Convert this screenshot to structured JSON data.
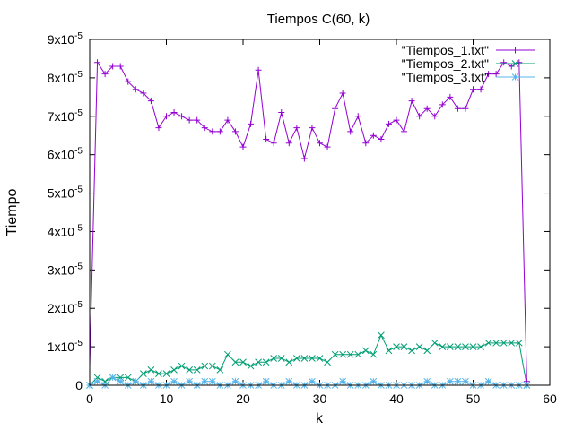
{
  "chart_data": {
    "type": "line",
    "title": "Tiempos C(60, k)",
    "xlabel": "k",
    "ylabel": "Tiempo",
    "xlim": [
      0,
      60
    ],
    "ylim": [
      0,
      9e-05
    ],
    "grid": false,
    "legend_position": "top-right",
    "x_ticks": [
      {
        "value": 0,
        "label": "0"
      },
      {
        "value": 10,
        "label": "10"
      },
      {
        "value": 20,
        "label": "20"
      },
      {
        "value": 30,
        "label": "30"
      },
      {
        "value": 40,
        "label": "40"
      },
      {
        "value": 50,
        "label": "50"
      },
      {
        "value": 60,
        "label": "60"
      }
    ],
    "y_ticks": [
      {
        "value": 0,
        "mantissa": "0",
        "exponent": ""
      },
      {
        "value": 1e-05,
        "mantissa": "1x10",
        "exponent": "-5"
      },
      {
        "value": 2e-05,
        "mantissa": "2x10",
        "exponent": "-5"
      },
      {
        "value": 3e-05,
        "mantissa": "3x10",
        "exponent": "-5"
      },
      {
        "value": 4e-05,
        "mantissa": "4x10",
        "exponent": "-5"
      },
      {
        "value": 5e-05,
        "mantissa": "5x10",
        "exponent": "-5"
      },
      {
        "value": 6e-05,
        "mantissa": "6x10",
        "exponent": "-5"
      },
      {
        "value": 7e-05,
        "mantissa": "7x10",
        "exponent": "-5"
      },
      {
        "value": 8e-05,
        "mantissa": "8x10",
        "exponent": "-5"
      },
      {
        "value": 9e-05,
        "mantissa": "9x10",
        "exponent": "-5"
      }
    ],
    "x": [
      0,
      1,
      2,
      3,
      4,
      5,
      6,
      7,
      8,
      9,
      10,
      11,
      12,
      13,
      14,
      15,
      16,
      17,
      18,
      19,
      20,
      21,
      22,
      23,
      24,
      25,
      26,
      27,
      28,
      29,
      30,
      31,
      32,
      33,
      34,
      35,
      36,
      37,
      38,
      39,
      40,
      41,
      42,
      43,
      44,
      45,
      46,
      47,
      48,
      49,
      50,
      51,
      52,
      53,
      54,
      55,
      56,
      57
    ],
    "series": [
      {
        "name": "\"Tiempos_1.txt\"",
        "color": "#9400d3",
        "marker": "plus",
        "values": [
          5e-06,
          8.4e-05,
          8.1e-05,
          8.3e-05,
          8.3e-05,
          7.9e-05,
          7.7e-05,
          7.6e-05,
          7.4e-05,
          6.7e-05,
          7e-05,
          7.1e-05,
          7e-05,
          6.9e-05,
          6.9e-05,
          6.7e-05,
          6.6e-05,
          6.6e-05,
          6.9e-05,
          6.6e-05,
          6.2e-05,
          6.8e-05,
          8.2e-05,
          6.4e-05,
          6.3e-05,
          7.1e-05,
          6.3e-05,
          6.7e-05,
          5.9e-05,
          6.7e-05,
          6.3e-05,
          6.2e-05,
          7.2e-05,
          7.6e-05,
          6.6e-05,
          7e-05,
          6.3e-05,
          6.5e-05,
          6.4e-05,
          6.8e-05,
          6.9e-05,
          6.6e-05,
          7.4e-05,
          7e-05,
          7.2e-05,
          7e-05,
          7.3e-05,
          7.5e-05,
          7.2e-05,
          7.2e-05,
          7.7e-05,
          7.7e-05,
          8.1e-05,
          8.1e-05,
          8.4e-05,
          8.3e-05,
          8.4e-05,
          1e-06
        ]
      },
      {
        "name": "\"Tiempos_2.txt\"",
        "color": "#009e73",
        "marker": "cross",
        "values": [
          0,
          2e-06,
          1e-06,
          2e-06,
          2e-06,
          2e-06,
          1e-06,
          3e-06,
          4e-06,
          3e-06,
          3e-06,
          4e-06,
          5e-06,
          4e-06,
          4e-06,
          5e-06,
          5e-06,
          4e-06,
          8e-06,
          6e-06,
          6e-06,
          5e-06,
          6e-06,
          6e-06,
          7e-06,
          7e-06,
          6e-06,
          7e-06,
          7e-06,
          7e-06,
          7e-06,
          6e-06,
          8e-06,
          8e-06,
          8e-06,
          8e-06,
          9e-06,
          8e-06,
          1.3e-05,
          9e-06,
          1e-05,
          1e-05,
          9e-06,
          1e-05,
          9e-06,
          1.1e-05,
          1e-05,
          1e-05,
          1e-05,
          1e-05,
          1e-05,
          1e-05,
          1.1e-05,
          1.1e-05,
          1.1e-05,
          1.1e-05,
          1.1e-05,
          0
        ]
      },
      {
        "name": "\"Tiempos_3.txt\"",
        "color": "#56b4e9",
        "marker": "star",
        "values": [
          0,
          1e-06,
          0,
          2e-06,
          1e-06,
          0,
          1e-06,
          0,
          1e-06,
          0,
          0,
          1e-06,
          0,
          1e-06,
          0,
          1e-06,
          1e-06,
          0,
          0,
          1e-06,
          0,
          0,
          0,
          1e-06,
          0,
          0,
          1e-06,
          0,
          0,
          1e-06,
          0,
          0,
          0,
          1e-06,
          0,
          0,
          0,
          1e-06,
          0,
          0,
          0,
          0,
          0,
          0,
          1e-06,
          0,
          0,
          1e-06,
          1e-06,
          1e-06,
          0,
          0,
          1e-06,
          0,
          0,
          0,
          0,
          0
        ]
      }
    ]
  }
}
